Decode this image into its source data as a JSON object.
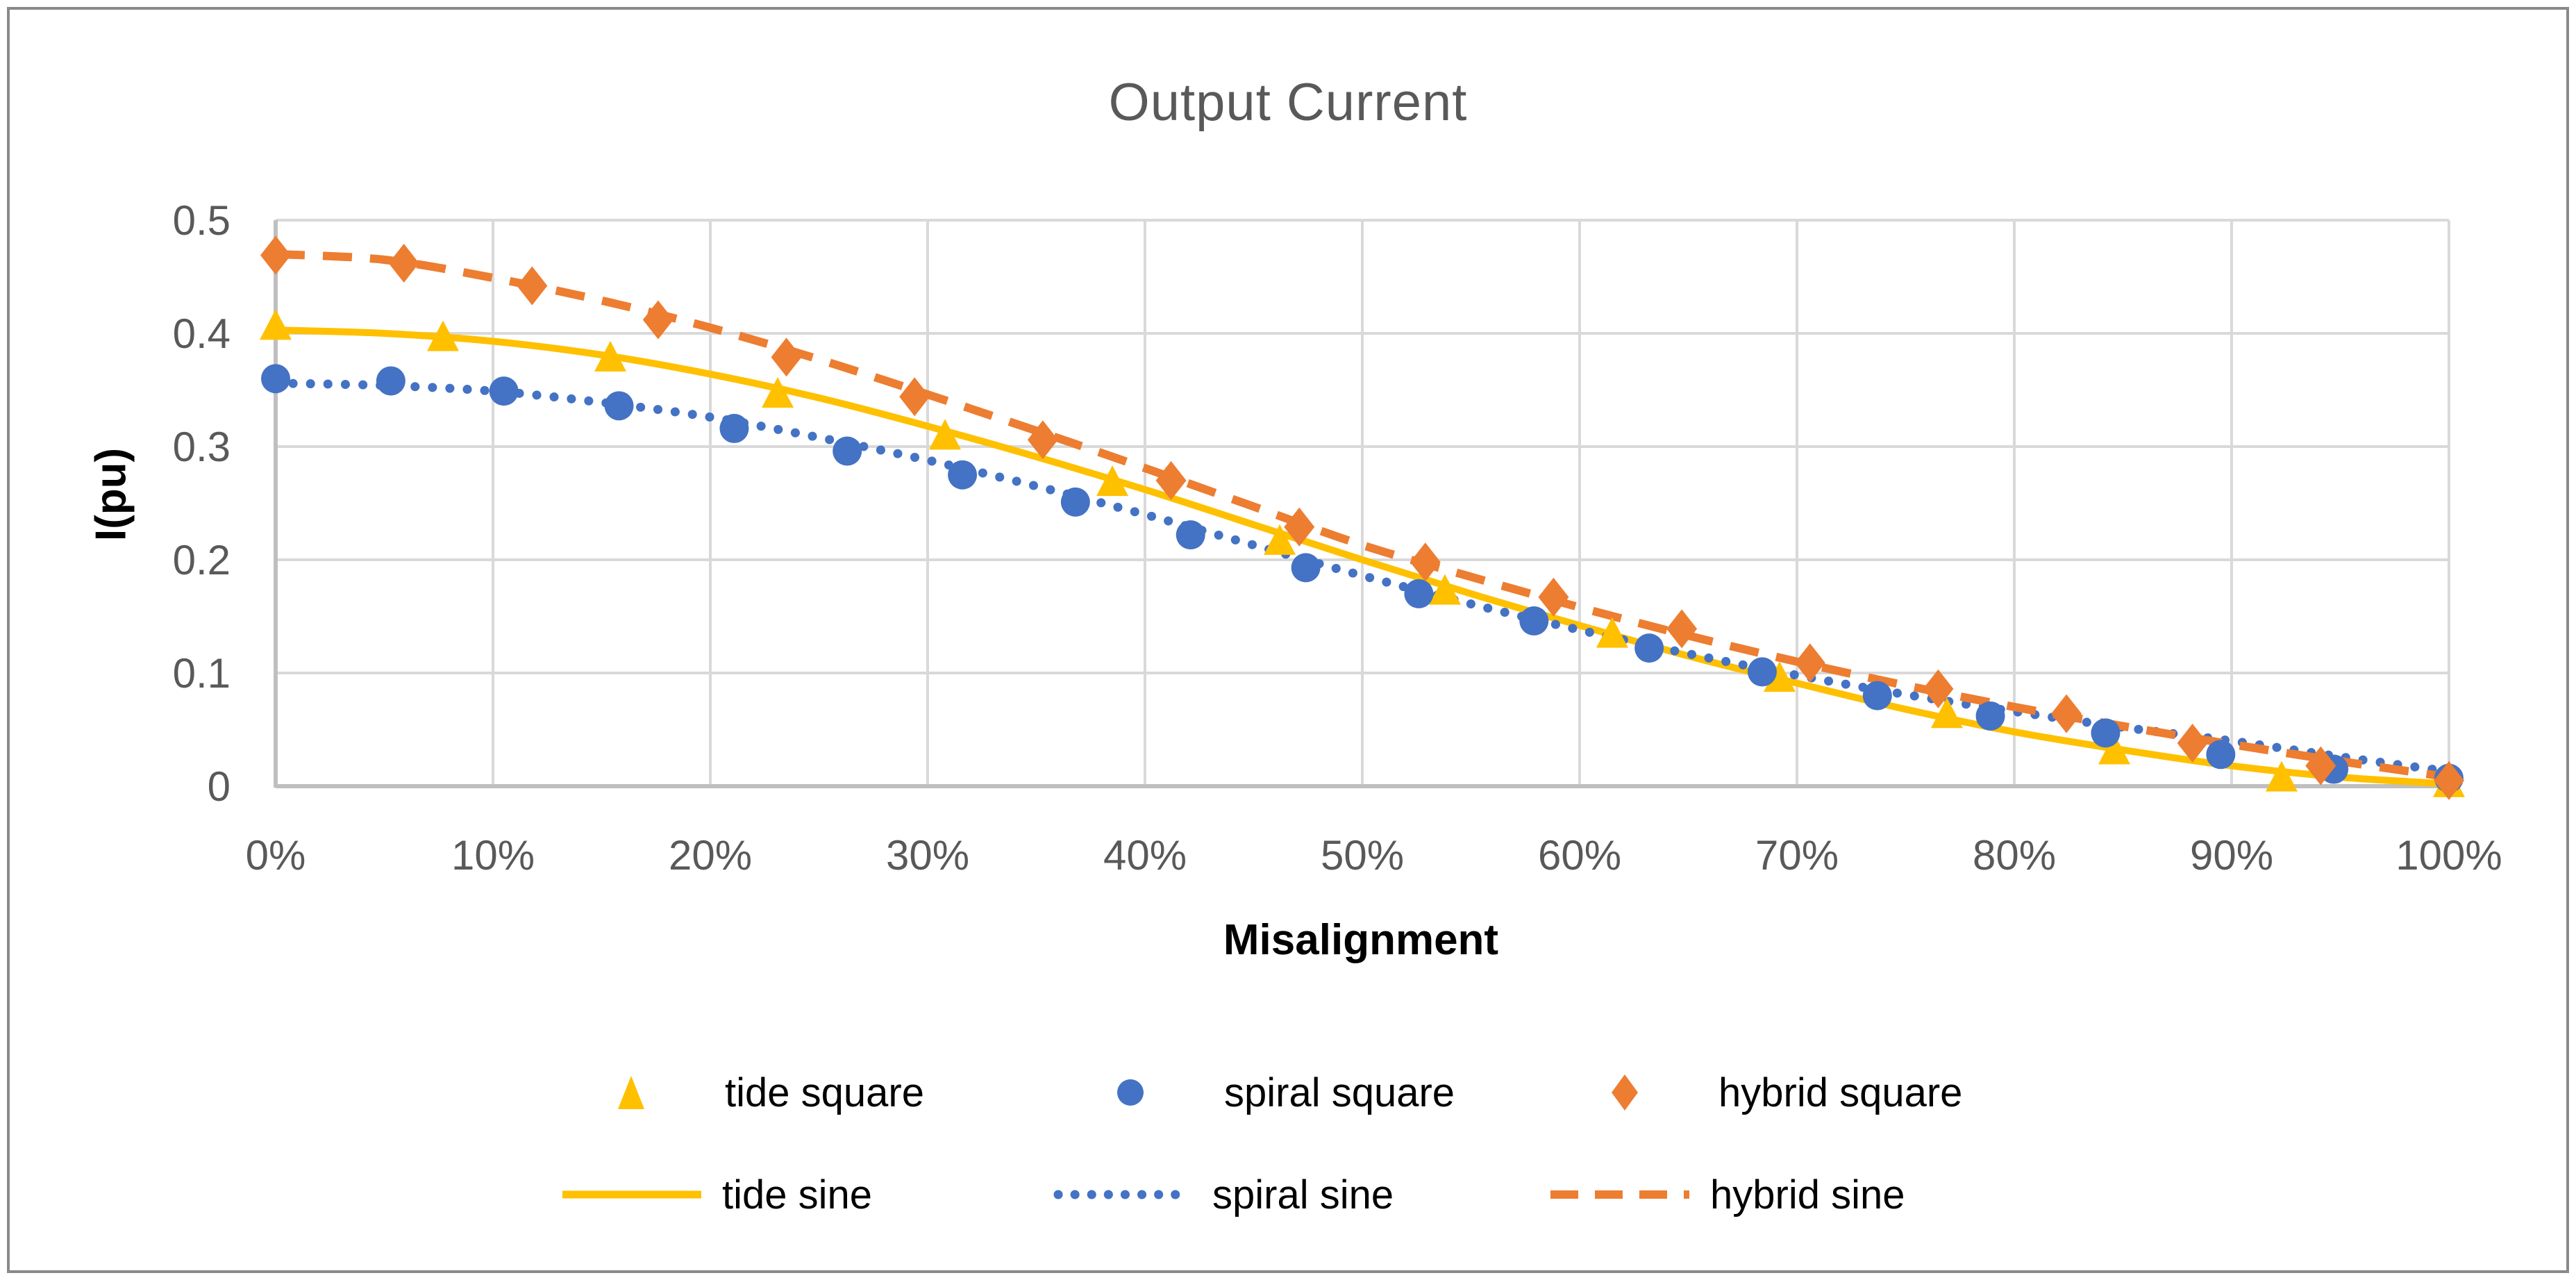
{
  "chart_data": {
    "type": "line",
    "title": "Output Current",
    "xlabel": "Misalignment",
    "ylabel": "I(pu)",
    "xlim": [
      0,
      100
    ],
    "ylim": [
      0,
      0.5
    ],
    "grid": true,
    "legend_position": "bottom",
    "x_ticks": [
      "0%",
      "10%",
      "20%",
      "30%",
      "40%",
      "50%",
      "60%",
      "70%",
      "80%",
      "90%",
      "100%"
    ],
    "x_tick_values": [
      0,
      10,
      20,
      30,
      40,
      50,
      60,
      70,
      80,
      90,
      100
    ],
    "y_ticks": [
      "0",
      "0.1",
      "0.2",
      "0.3",
      "0.4",
      "0.5"
    ],
    "y_tick_values": [
      0,
      0.1,
      0.2,
      0.3,
      0.4,
      0.5
    ],
    "colors": {
      "grid": "#D9D9D9",
      "axis": "#BFBFBF",
      "tick": "#595959",
      "title": "#595959",
      "text": "#000000",
      "border": "#8A8A8A"
    },
    "series": [
      {
        "name": "tide square",
        "type": "scatter",
        "marker": "triangle",
        "color": "#FFC000",
        "x": [
          0,
          7.7,
          15.4,
          23.1,
          30.8,
          38.5,
          46.2,
          53.8,
          61.5,
          69.2,
          76.9,
          84.6,
          92.3,
          100
        ],
        "y": [
          0.406,
          0.396,
          0.378,
          0.346,
          0.309,
          0.268,
          0.216,
          0.172,
          0.134,
          0.095,
          0.063,
          0.031,
          0.007,
          0.002
        ]
      },
      {
        "name": "spiral square",
        "type": "scatter",
        "marker": "circle",
        "color": "#4472C4",
        "x": [
          0,
          5.3,
          10.5,
          15.8,
          21.1,
          26.3,
          31.6,
          36.8,
          42.1,
          47.4,
          52.6,
          57.9,
          63.2,
          68.4,
          73.7,
          78.9,
          84.2,
          89.5,
          94.7,
          100
        ],
        "y": [
          0.36,
          0.358,
          0.349,
          0.336,
          0.316,
          0.296,
          0.275,
          0.251,
          0.222,
          0.193,
          0.17,
          0.146,
          0.122,
          0.101,
          0.08,
          0.062,
          0.047,
          0.028,
          0.015,
          0.007
        ]
      },
      {
        "name": "hybrid square",
        "type": "scatter",
        "marker": "diamond",
        "color": "#ED7D31",
        "x": [
          0,
          5.9,
          11.8,
          17.6,
          23.5,
          29.4,
          35.3,
          41.2,
          47.1,
          52.9,
          58.8,
          64.7,
          70.6,
          76.5,
          82.4,
          88.2,
          94.1,
          100
        ],
        "y": [
          0.469,
          0.462,
          0.442,
          0.412,
          0.379,
          0.344,
          0.306,
          0.27,
          0.229,
          0.198,
          0.167,
          0.139,
          0.109,
          0.086,
          0.064,
          0.038,
          0.018,
          0.005
        ]
      },
      {
        "name": "tide sine",
        "type": "line",
        "dash": "solid",
        "color": "#FFC000",
        "x": [
          0,
          5,
          10,
          15,
          20,
          25,
          30,
          35,
          40,
          45,
          50,
          55,
          60,
          65,
          70,
          75,
          80,
          85,
          90,
          95,
          100
        ],
        "y": [
          0.403,
          0.4,
          0.393,
          0.381,
          0.364,
          0.343,
          0.318,
          0.291,
          0.262,
          0.231,
          0.2,
          0.17,
          0.142,
          0.115,
          0.091,
          0.068,
          0.048,
          0.032,
          0.018,
          0.008,
          0.002
        ]
      },
      {
        "name": "spiral sine",
        "type": "line",
        "dash": "dotted",
        "color": "#4472C4",
        "x": [
          0,
          5,
          10,
          15,
          20,
          25,
          30,
          35,
          40,
          45,
          50,
          55,
          60,
          65,
          70,
          75,
          80,
          85,
          90,
          95,
          100
        ],
        "y": [
          0.356,
          0.354,
          0.349,
          0.339,
          0.326,
          0.308,
          0.288,
          0.265,
          0.24,
          0.213,
          0.186,
          0.161,
          0.138,
          0.117,
          0.098,
          0.081,
          0.066,
          0.052,
          0.04,
          0.026,
          0.013
        ]
      },
      {
        "name": "hybrid sine",
        "type": "line",
        "dash": "dashed",
        "color": "#ED7D31",
        "x": [
          0,
          5,
          10,
          15,
          20,
          25,
          30,
          35,
          40,
          45,
          50,
          55,
          60,
          65,
          70,
          75,
          80,
          85,
          90,
          95,
          100
        ],
        "y": [
          0.47,
          0.465,
          0.449,
          0.429,
          0.405,
          0.377,
          0.346,
          0.314,
          0.281,
          0.247,
          0.213,
          0.185,
          0.158,
          0.133,
          0.11,
          0.089,
          0.07,
          0.053,
          0.037,
          0.022,
          0.008
        ]
      }
    ]
  }
}
